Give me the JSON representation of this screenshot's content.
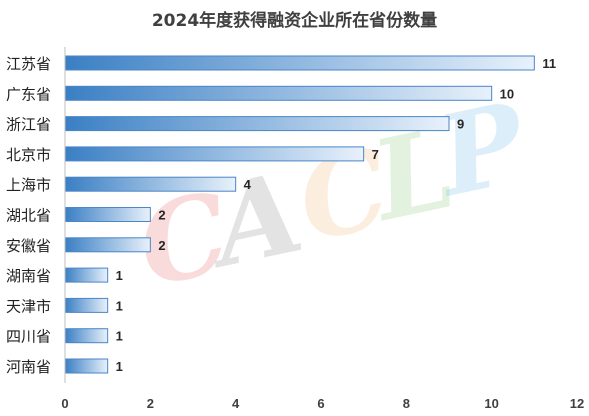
{
  "chart_data": {
    "type": "bar",
    "orientation": "horizontal",
    "title": "2024年度获得融资企业所在省份数量",
    "categories": [
      "江苏省",
      "广东省",
      "浙江省",
      "北京市",
      "上海市",
      "湖北省",
      "安徽省",
      "湖南省",
      "天津市",
      "四川省",
      "河南省"
    ],
    "values": [
      11,
      10,
      9,
      7,
      4,
      2,
      2,
      1,
      1,
      1,
      1
    ],
    "xlim": [
      0,
      12
    ],
    "xticks": [
      "0",
      "2",
      "4",
      "6",
      "8",
      "10",
      "12"
    ],
    "xlabel": "",
    "ylabel": "",
    "grid": false,
    "legend": "none",
    "bar_color_start": "#3a7fc4",
    "bar_color_end": "#e8f1fb",
    "bar_border": "#4a86c8"
  },
  "watermark": {
    "text": "CACLP",
    "letters": [
      "C",
      "A",
      "C",
      "L",
      "P"
    ],
    "colors": [
      "#f08080",
      "#9e9e9e",
      "#f5c38a",
      "#9ed28a",
      "#7fc3ea"
    ]
  }
}
